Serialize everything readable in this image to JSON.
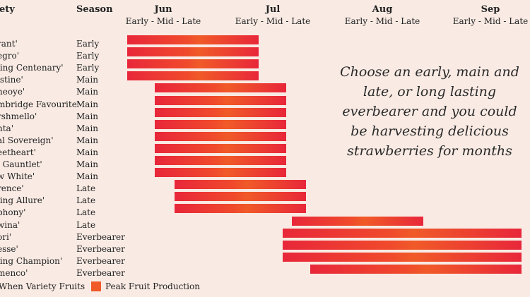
{
  "chart_data": {
    "type": "bar",
    "headers": {
      "variety": "iety",
      "season": "Season"
    },
    "months": [
      {
        "name": "Jun",
        "sub": "Early - Mid - Late"
      },
      {
        "name": "Jul",
        "sub": "Early - Mid - Late"
      },
      {
        "name": "Aug",
        "sub": "Early - Mid - Late"
      },
      {
        "name": "Sep",
        "sub": "Early - Mid - Late"
      }
    ],
    "rows": [
      {
        "variety": "rant'",
        "season": "Early",
        "start": 0.0,
        "end": 1.2
      },
      {
        "variety": "egro'",
        "season": "Early",
        "start": 0.0,
        "end": 1.2
      },
      {
        "variety": "ling Centenary'",
        "season": "Early",
        "start": 0.0,
        "end": 1.2
      },
      {
        "variety": "istine'",
        "season": "Main",
        "start": 0.0,
        "end": 1.2
      },
      {
        "variety": "neoye'",
        "season": "Main",
        "start": 0.25,
        "end": 1.45
      },
      {
        "variety": "mbridge Favourite'",
        "season": "Main",
        "start": 0.25,
        "end": 1.45
      },
      {
        "variety": "rshmello'",
        "season": "Main",
        "start": 0.25,
        "end": 1.45
      },
      {
        "variety": "nta'",
        "season": "Main",
        "start": 0.25,
        "end": 1.45
      },
      {
        "variety": "al Sovereign'",
        "season": "Main",
        "start": 0.25,
        "end": 1.45
      },
      {
        "variety": "eetheart'",
        "season": "Main",
        "start": 0.25,
        "end": 1.45
      },
      {
        "variety": "l Gauntlet'",
        "season": "Main",
        "start": 0.25,
        "end": 1.45
      },
      {
        "variety": "w White'",
        "season": "Main",
        "start": 0.25,
        "end": 1.45
      },
      {
        "variety": "rence'",
        "season": "Late",
        "start": 0.43,
        "end": 1.63
      },
      {
        "variety": "ling Allure'",
        "season": "Late",
        "start": 0.43,
        "end": 1.63
      },
      {
        "variety": "phony'",
        "season": "Late",
        "start": 0.43,
        "end": 1.63
      },
      {
        "variety": "wina'",
        "season": "Late",
        "start": 1.5,
        "end": 2.7
      },
      {
        "variety": "ori'",
        "season": "Everbearer",
        "start": 1.42,
        "end": 3.6
      },
      {
        "variety": "esse'",
        "season": "Everbearer",
        "start": 1.42,
        "end": 3.6
      },
      {
        "variety": "ling Champion'",
        "season": "Everbearer",
        "start": 1.42,
        "end": 3.6
      },
      {
        "variety": "menco'",
        "season": "Everbearer",
        "start": 1.67,
        "end": 3.6
      }
    ],
    "callout": "Choose an early, main and late, or long lasting everbearer and you could be harvesting delicious strawberries for months",
    "legend": [
      {
        "label": "When Variety Fruits",
        "color": "#e8273a"
      },
      {
        "label": "Peak Fruit Production",
        "color": "#f05a28"
      }
    ]
  }
}
